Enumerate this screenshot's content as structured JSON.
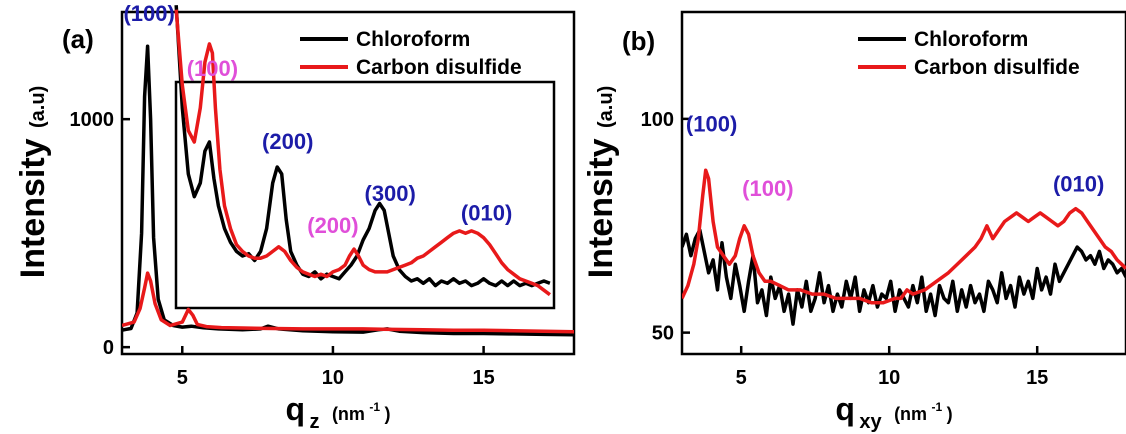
{
  "chart_data": [
    {
      "type": "line",
      "panel_label": "(a)",
      "xlabel_main": "q",
      "xlabel_sub": "z",
      "xlabel_unit": "(nm",
      "xlabel_unit_exp": "-1",
      "xlabel_unit_close": ")",
      "ylabel_main": "Intensity",
      "ylabel_unit": "(a.u)",
      "xlim": [
        3,
        18
      ],
      "ylim": [
        -30,
        1470
      ],
      "xticks": [
        5,
        10,
        15
      ],
      "yticks": [
        0,
        1000
      ],
      "legend": [
        "Chloroform",
        "Carbon disulfide"
      ],
      "legend_position": "top-right",
      "colors": {
        "Chloroform": "#000000",
        "Carbon disulfide": "#e8191a"
      },
      "series": [
        {
          "name": "Chloroform",
          "x": [
            3.0,
            3.3,
            3.5,
            3.65,
            3.75,
            3.85,
            3.95,
            4.05,
            4.2,
            4.4,
            4.7,
            5.0,
            5.3,
            5.7,
            6.2,
            7.0,
            7.6,
            7.85,
            8.2,
            9.0,
            10.0,
            11.0,
            11.5,
            11.8,
            12.2,
            13.0,
            14.0,
            15.0,
            16.0,
            17.0,
            18.0
          ],
          "y": [
            75,
            82,
            150,
            500,
            1100,
            1320,
            1000,
            480,
            210,
            120,
            95,
            88,
            92,
            85,
            80,
            76,
            80,
            92,
            80,
            72,
            68,
            66,
            76,
            80,
            70,
            64,
            60,
            60,
            58,
            56,
            54
          ]
        },
        {
          "name": "Carbon disulfide",
          "x": [
            3.0,
            3.4,
            3.6,
            3.75,
            3.85,
            3.95,
            4.1,
            4.3,
            4.6,
            5.0,
            5.2,
            5.35,
            5.5,
            5.8,
            6.3,
            7.0,
            8.0,
            9.0,
            10.0,
            11.0,
            12.0,
            13.0,
            14.0,
            15.0,
            16.0,
            17.0,
            18.0
          ],
          "y": [
            95,
            110,
            170,
            260,
            325,
            290,
            190,
            120,
            95,
            110,
            165,
            140,
            100,
            90,
            86,
            84,
            82,
            80,
            80,
            80,
            78,
            76,
            74,
            74,
            72,
            70,
            68
          ]
        }
      ],
      "annotations": [
        {
          "text": "(100)",
          "color": "#1c1ca8",
          "x": 3.9,
          "y": 1430
        },
        {
          "text": "(100)",
          "color": "#e04fd9",
          "x": 6.0,
          "y": 1190
        },
        {
          "text": "(200)",
          "color": "#1c1ca8",
          "x": 8.5,
          "y": 870
        },
        {
          "text": "(200)",
          "color": "#e04fd9",
          "x": 10.0,
          "y": 500
        },
        {
          "text": "(300)",
          "color": "#1c1ca8",
          "x": 11.9,
          "y": 640
        },
        {
          "text": "(010)",
          "color": "#1c1ca8",
          "x": 15.1,
          "y": 555
        }
      ],
      "inset": {
        "x_range": [
          4.8,
          17.3
        ],
        "y_range": [
          180,
          1480
        ],
        "series": [
          {
            "name": "Chloroform",
            "x": [
              4.8,
              5.0,
              5.2,
              5.4,
              5.6,
              5.75,
              5.9,
              6.05,
              6.2,
              6.4,
              6.6,
              6.8,
              7.0,
              7.2,
              7.4,
              7.6,
              7.8,
              8.0,
              8.15,
              8.3,
              8.45,
              8.6,
              8.8,
              9.0,
              9.2,
              9.4,
              9.6,
              9.8,
              10.0,
              10.2,
              10.4,
              10.6,
              10.8,
              11.0,
              11.2,
              11.4,
              11.55,
              11.7,
              11.85,
              12.0,
              12.2,
              12.4,
              12.6,
              12.8,
              13.0,
              13.2,
              13.4,
              13.6,
              13.8,
              14.0,
              14.2,
              14.4,
              14.6,
              14.8,
              15.0,
              15.2,
              15.4,
              15.6,
              15.8,
              16.0,
              16.2,
              16.4,
              16.6,
              16.8,
              17.0,
              17.2
            ],
            "y": [
              1500,
              1050,
              760,
              660,
              720,
              860,
              900,
              740,
              620,
              520,
              460,
              420,
              400,
              410,
              380,
              420,
              520,
              720,
              790,
              760,
              560,
              420,
              360,
              320,
              310,
              330,
              300,
              320,
              310,
              300,
              330,
              360,
              400,
              470,
              520,
              600,
              630,
              600,
              500,
              400,
              340,
              310,
              290,
              300,
              280,
              300,
              270,
              290,
              280,
              300,
              280,
              290,
              270,
              280,
              300,
              280,
              270,
              290,
              270,
              290,
              270,
              280,
              270,
              280,
              290,
              280
            ]
          },
          {
            "name": "Carbon disulfide",
            "x": [
              4.8,
              5.0,
              5.2,
              5.4,
              5.6,
              5.75,
              5.9,
              6.0,
              6.1,
              6.25,
              6.4,
              6.6,
              6.8,
              7.0,
              7.2,
              7.4,
              7.6,
              7.8,
              8.0,
              8.2,
              8.4,
              8.6,
              8.8,
              9.0,
              9.2,
              9.4,
              9.6,
              9.8,
              10.0,
              10.2,
              10.4,
              10.55,
              10.7,
              10.85,
              11.0,
              11.2,
              11.4,
              11.6,
              11.8,
              12.0,
              12.2,
              12.4,
              12.6,
              12.8,
              13.0,
              13.2,
              13.4,
              13.6,
              13.8,
              14.0,
              14.2,
              14.4,
              14.6,
              14.8,
              15.0,
              15.2,
              15.4,
              15.6,
              15.8,
              16.0,
              16.2,
              16.4,
              16.6,
              16.8,
              17.0,
              17.2
            ],
            "y": [
              1480,
              1150,
              950,
              900,
              1050,
              1250,
              1330,
              1290,
              1050,
              780,
              620,
              520,
              450,
              420,
              400,
              390,
              390,
              400,
              420,
              440,
              420,
              380,
              350,
              330,
              320,
              310,
              320,
              310,
              330,
              340,
              360,
              400,
              430,
              400,
              360,
              340,
              330,
              330,
              330,
              340,
              350,
              360,
              370,
              390,
              400,
              420,
              440,
              460,
              480,
              500,
              510,
              500,
              510,
              500,
              480,
              450,
              410,
              370,
              340,
              320,
              300,
              290,
              280,
              270,
              250,
              230
            ]
          }
        ]
      }
    },
    {
      "type": "line",
      "panel_label": "(b)",
      "xlabel_main": "q",
      "xlabel_sub": "xy",
      "xlabel_unit": "(nm",
      "xlabel_unit_exp": "-1",
      "xlabel_unit_close": ")",
      "ylabel_main": "Intensity",
      "ylabel_unit": "(a.u)",
      "xlim": [
        3,
        18
      ],
      "ylim": [
        45,
        125
      ],
      "xticks": [
        5,
        10,
        15
      ],
      "yticks": [
        50,
        100
      ],
      "legend": [
        "Chloroform",
        "Carbon disulfide"
      ],
      "legend_position": "top-right",
      "colors": {
        "Chloroform": "#000000",
        "Carbon disulfide": "#e8191a"
      },
      "series": [
        {
          "name": "Chloroform",
          "x": [
            3.0,
            3.15,
            3.3,
            3.45,
            3.6,
            3.75,
            3.9,
            4.05,
            4.2,
            4.35,
            4.5,
            4.65,
            4.8,
            4.95,
            5.1,
            5.25,
            5.4,
            5.55,
            5.7,
            5.85,
            6.0,
            6.15,
            6.3,
            6.45,
            6.6,
            6.75,
            6.9,
            7.05,
            7.2,
            7.35,
            7.5,
            7.65,
            7.8,
            7.95,
            8.1,
            8.25,
            8.4,
            8.55,
            8.7,
            8.85,
            9.0,
            9.15,
            9.3,
            9.45,
            9.6,
            9.75,
            9.9,
            10.05,
            10.2,
            10.35,
            10.5,
            10.65,
            10.8,
            10.95,
            11.1,
            11.25,
            11.4,
            11.55,
            11.7,
            11.85,
            12.0,
            12.15,
            12.3,
            12.45,
            12.6,
            12.75,
            12.9,
            13.05,
            13.2,
            13.35,
            13.5,
            13.65,
            13.8,
            13.95,
            14.1,
            14.25,
            14.4,
            14.55,
            14.7,
            14.85,
            15.0,
            15.15,
            15.3,
            15.45,
            15.6,
            15.75,
            15.9,
            16.05,
            16.2,
            16.35,
            16.5,
            16.65,
            16.8,
            16.95,
            17.1,
            17.25,
            17.4,
            17.55,
            17.7,
            17.85,
            18.0
          ],
          "y": [
            70,
            73,
            68,
            72,
            74,
            69,
            64,
            67,
            60,
            71,
            63,
            58,
            66,
            61,
            55,
            62,
            68,
            57,
            60,
            54,
            63,
            58,
            61,
            55,
            59,
            52,
            60,
            56,
            62,
            55,
            58,
            64,
            57,
            61,
            55,
            59,
            56,
            62,
            58,
            63,
            55,
            60,
            57,
            61,
            56,
            59,
            58,
            62,
            55,
            60,
            58,
            56,
            61,
            57,
            63,
            55,
            59,
            54,
            61,
            58,
            57,
            62,
            55,
            60,
            56,
            61,
            57,
            59,
            55,
            62,
            60,
            57,
            64,
            58,
            61,
            56,
            63,
            59,
            62,
            58,
            65,
            60,
            63,
            59,
            66,
            62,
            64,
            66,
            68,
            70,
            69,
            67,
            68,
            66,
            69,
            65,
            67,
            66,
            64,
            65,
            63
          ]
        },
        {
          "name": "Carbon disulfide",
          "x": [
            3.0,
            3.2,
            3.4,
            3.55,
            3.7,
            3.8,
            3.9,
            4.05,
            4.2,
            4.4,
            4.6,
            4.8,
            4.95,
            5.1,
            5.25,
            5.4,
            5.6,
            5.8,
            6.0,
            6.3,
            6.6,
            7.0,
            7.4,
            7.8,
            8.2,
            8.6,
            9.0,
            9.4,
            9.8,
            10.2,
            10.4,
            10.6,
            10.8,
            11.2,
            11.6,
            12.0,
            12.3,
            12.6,
            12.9,
            13.1,
            13.3,
            13.5,
            13.7,
            13.9,
            14.1,
            14.3,
            14.5,
            14.7,
            14.9,
            15.1,
            15.3,
            15.5,
            15.7,
            15.9,
            16.1,
            16.3,
            16.5,
            16.7,
            16.9,
            17.1,
            17.3,
            17.5,
            17.7,
            17.85,
            18.0
          ],
          "y": [
            58,
            61,
            66,
            72,
            82,
            88,
            86,
            76,
            70,
            68,
            66,
            68,
            72,
            75,
            73,
            68,
            64,
            62,
            62,
            61,
            60,
            60,
            59,
            59,
            58,
            58,
            58,
            57,
            57,
            58,
            58,
            60,
            59,
            60,
            62,
            64,
            66,
            68,
            70,
            72,
            75,
            72,
            74,
            76,
            77,
            78,
            77,
            76,
            77,
            78,
            77,
            76,
            75,
            76,
            78,
            79,
            78,
            76,
            74,
            72,
            70,
            69,
            67,
            66,
            65
          ]
        }
      ],
      "annotations": [
        {
          "text": "(100)",
          "color": "#1c1ca8",
          "x": 4.0,
          "y": 97
        },
        {
          "text": "(100)",
          "color": "#e04fd9",
          "x": 5.9,
          "y": 82
        },
        {
          "text": "(010)",
          "color": "#1c1ca8",
          "x": 16.4,
          "y": 83
        }
      ]
    }
  ]
}
